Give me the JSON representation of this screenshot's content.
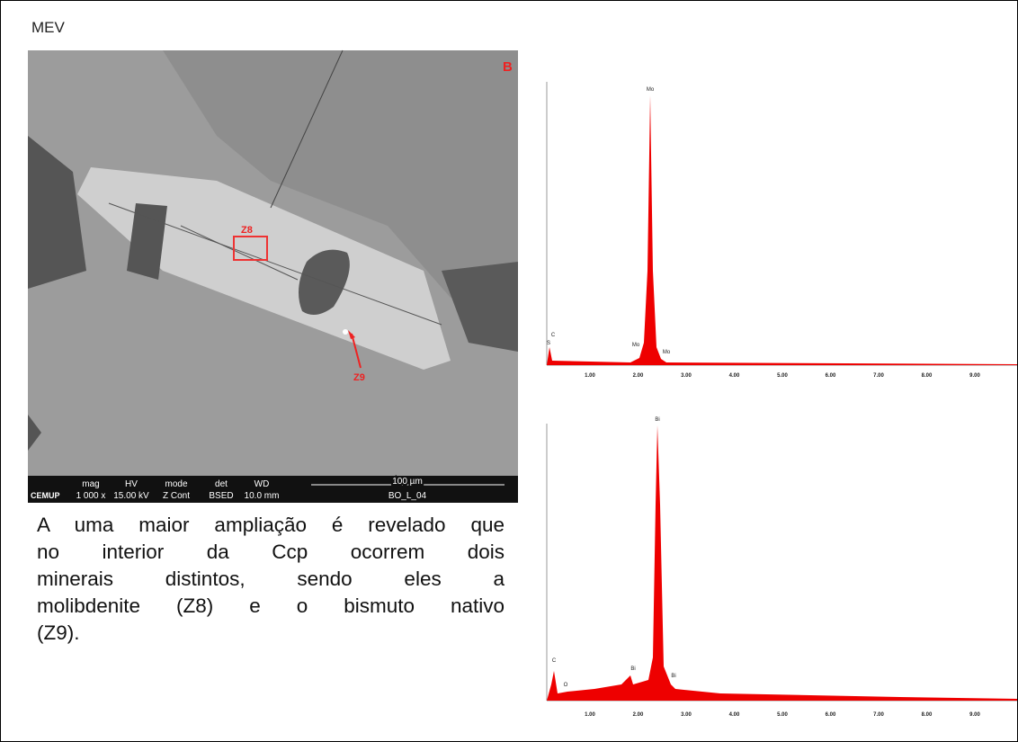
{
  "header": {
    "title": "MEV"
  },
  "sem_image": {
    "panel_label": "B",
    "markers": [
      "Z8",
      "Z9"
    ],
    "info_bar": {
      "logo": "CEMUP",
      "fields": [
        {
          "name": "mag",
          "value": "1 000 x"
        },
        {
          "name": "HV",
          "value": "15.00 kV"
        },
        {
          "name": "mode",
          "value": "Z Cont"
        },
        {
          "name": "det",
          "value": "BSED"
        },
        {
          "name": "WD",
          "value": "10.0 mm"
        }
      ],
      "scale": "100 µm",
      "sample": "BO_L_04"
    }
  },
  "paragraph": {
    "lines": [
      "A uma maior ampliação é revelado que",
      "no interior da Ccp ocorrem dois",
      "minerais distintos, sendo eles a",
      "molibdenite (Z8) e o bismuto nativo",
      "(Z9)."
    ]
  },
  "spectra": [
    {
      "peaks": [
        "Mo",
        "Mo",
        "Mo",
        "S",
        "C"
      ],
      "x_ticks": [
        "1.00",
        "2.00",
        "3.00",
        "4.00",
        "5.00",
        "6.00",
        "7.00",
        "8.00",
        "9.00",
        "keV"
      ]
    },
    {
      "peaks": [
        "Bi",
        "Bi",
        "Bi",
        "C",
        "O"
      ],
      "x_ticks": [
        "1.00",
        "2.00",
        "3.00",
        "4.00",
        "5.00",
        "6.00",
        "7.00",
        "8.00",
        "9.00",
        "keV"
      ]
    }
  ]
}
